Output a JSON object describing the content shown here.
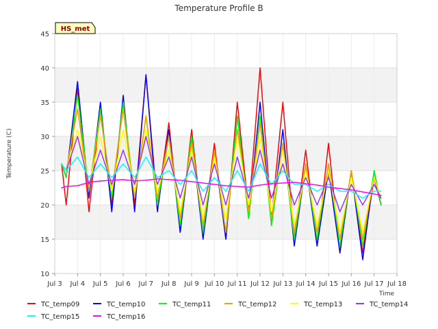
{
  "chart_data": {
    "type": "line",
    "title": "Temperature Profile B",
    "xlabel": "Time",
    "ylabel": "Temperature (C)",
    "badge": "HS_met",
    "xlim": [
      3,
      18
    ],
    "ylim": [
      10,
      45
    ],
    "x_ticks": [
      3,
      4,
      5,
      6,
      7,
      8,
      9,
      10,
      11,
      12,
      13,
      14,
      15,
      16,
      17,
      18
    ],
    "x_tick_labels": [
      "Jul 3",
      "Jul 4",
      "Jul 5",
      "Jul 6",
      "Jul 7",
      "Jul 8",
      "Jul 9",
      "Jul 10",
      "Jul 11",
      "Jul 12",
      "Jul 13",
      "Jul 14",
      "Jul 15",
      "Jul 16",
      "Jul 17",
      "Jul 18"
    ],
    "y_ticks": [
      10,
      15,
      20,
      25,
      30,
      35,
      40,
      45
    ],
    "y_tick_labels": [
      "10",
      "15",
      "20",
      "25",
      "30",
      "35",
      "40",
      "45"
    ],
    "grid": true,
    "legend_position": "bottom",
    "day_x": [
      3.3,
      3.5,
      4.0,
      4.5,
      5.0,
      5.5,
      6.0,
      6.5,
      7.0,
      7.5,
      8.0,
      8.5,
      9.0,
      9.5,
      10.0,
      10.5,
      11.0,
      11.5,
      12.0,
      12.5,
      13.0,
      13.5,
      14.0,
      14.5,
      15.0,
      15.5,
      16.0,
      16.5,
      17.0,
      17.3
    ],
    "series": [
      {
        "name": "TC_temp09",
        "color": "#ff0000",
        "values": [
          26,
          20,
          37,
          19,
          34,
          20,
          35,
          20,
          39,
          20,
          32,
          16,
          31,
          16,
          29,
          15,
          35,
          19,
          40,
          18,
          35,
          15,
          28,
          14,
          29,
          13,
          25,
          13,
          24,
          20
        ]
      },
      {
        "name": "TC_temp10",
        "color": "#0000ff",
        "values": [
          26,
          24,
          38,
          21,
          35,
          19,
          36,
          19,
          39,
          19,
          31,
          16,
          30,
          15,
          28,
          15,
          33,
          18,
          35,
          17,
          31,
          14,
          26,
          14,
          25,
          13,
          25,
          12,
          25,
          20
        ]
      },
      {
        "name": "TC_temp11",
        "color": "#00ff00",
        "values": [
          26,
          24,
          36,
          22,
          34,
          21,
          35,
          21,
          33,
          20,
          30,
          17,
          30,
          16,
          28,
          16,
          33,
          18,
          33,
          17,
          29,
          15,
          26,
          15,
          26,
          14,
          25,
          14,
          25,
          20
        ]
      },
      {
        "name": "TC_temp12",
        "color": "#ff9900",
        "values": [
          26,
          25,
          34,
          22,
          33,
          22,
          34,
          21,
          33,
          21,
          30,
          18,
          29,
          17,
          28,
          16,
          31,
          19,
          32,
          18,
          29,
          16,
          26,
          16,
          26,
          15,
          25,
          15,
          24,
          21
        ]
      },
      {
        "name": "TC_temp13",
        "color": "#ffff00",
        "values": [
          26,
          25,
          31,
          23,
          30,
          22,
          31,
          22,
          31,
          22,
          28,
          19,
          28,
          18,
          27,
          18,
          30,
          20,
          30,
          19,
          28,
          17,
          25,
          17,
          25,
          16,
          24,
          16,
          24,
          21
        ]
      },
      {
        "name": "TC_temp14",
        "color": "#9933ff",
        "values": [
          26,
          25,
          30,
          23,
          28,
          23,
          28,
          23,
          30,
          23,
          27,
          21,
          27,
          20,
          26,
          20,
          27,
          21,
          28,
          21,
          26,
          20,
          24,
          20,
          24,
          19,
          23,
          20,
          23,
          21
        ]
      },
      {
        "name": "TC_temp15",
        "color": "#00ffff",
        "values": [
          26,
          25,
          27,
          24,
          26,
          24,
          26,
          24,
          27,
          24,
          25,
          23,
          25,
          22,
          24,
          22,
          25,
          22,
          26,
          23,
          25,
          23,
          23,
          22,
          23,
          22,
          22,
          21,
          22,
          22
        ]
      },
      {
        "name": "TC_temp16",
        "color": "#ff00ff",
        "values": [
          22.5,
          22.7,
          22.8,
          23.3,
          23.5,
          23.6,
          23.7,
          23.5,
          23.6,
          23.8,
          23.7,
          23.6,
          23.4,
          23.2,
          23.0,
          22.8,
          22.7,
          22.6,
          22.9,
          23.1,
          23.2,
          23.3,
          23.1,
          22.9,
          22.6,
          22.4,
          22.2,
          21.9,
          21.6,
          21.4
        ]
      }
    ]
  }
}
